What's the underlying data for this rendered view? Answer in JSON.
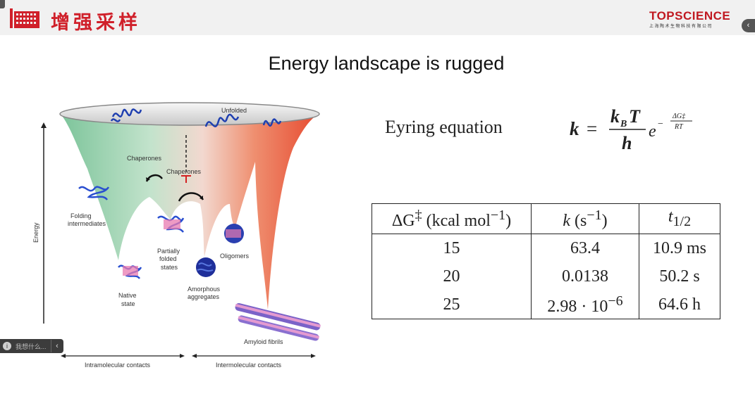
{
  "header": {
    "logo_text": "增强采样",
    "brand_name": "TOPSCIENCE",
    "brand_sub": "上海陶术生物科技有限公司",
    "right_tab_icon": "chevron-left-icon",
    "right_tab_glyph": "‹"
  },
  "slide": {
    "title": "Energy landscape is rugged",
    "eyring_label": "Eyring equation"
  },
  "figure": {
    "y_axis_label": "Energy",
    "labels": {
      "unfolded": "Unfolded",
      "chaperones_1": "Chaperones",
      "chaperones_2": "Chaperones",
      "folding_intermediates_1": "Folding",
      "folding_intermediates_2": "intermediates",
      "partially_folded_1": "Partially",
      "partially_folded_2": "folded",
      "partially_folded_3": "states",
      "oligomers": "Oligomers",
      "native_1": "Native",
      "native_2": "state",
      "amorphous_1": "Amorphous",
      "amorphous_2": "aggregates",
      "amyloid": "Amyloid fibrils",
      "intramolecular": "Intramolecular contacts",
      "intermolecular": "Intermolecular contacts"
    }
  },
  "formula": {
    "lhs": "k",
    "eq": "=",
    "numerator": "k",
    "numerator_sub": "B",
    "numerator_T": "T",
    "denominator": "h",
    "base": "e",
    "exp_minus": "−",
    "exp_num": "ΔG‡",
    "exp_den": "RT"
  },
  "table": {
    "headers": [
      {
        "main": "ΔG",
        "sup": "‡",
        "rest": " (kcal mol",
        "rest_sup": "−1",
        "tail": ")"
      },
      {
        "main": "k",
        "rest": " (s",
        "rest_sup": "−1",
        "tail": ")"
      },
      {
        "main": "t",
        "sub": "1/2"
      }
    ],
    "rows": [
      {
        "dg": "15",
        "k": "63.4",
        "k_sup": "",
        "t": "10.9 ms"
      },
      {
        "dg": "20",
        "k": "0.0138",
        "k_sup": "",
        "t": "50.2 s"
      },
      {
        "dg": "25",
        "k": "2.98 · 10",
        "k_sup": "−6",
        "t": "64.6 h"
      }
    ]
  },
  "floating_pill": {
    "icon": "info-icon",
    "icon_glyph": "i",
    "text": "我想什么...",
    "chevron_glyph": "‹"
  }
}
